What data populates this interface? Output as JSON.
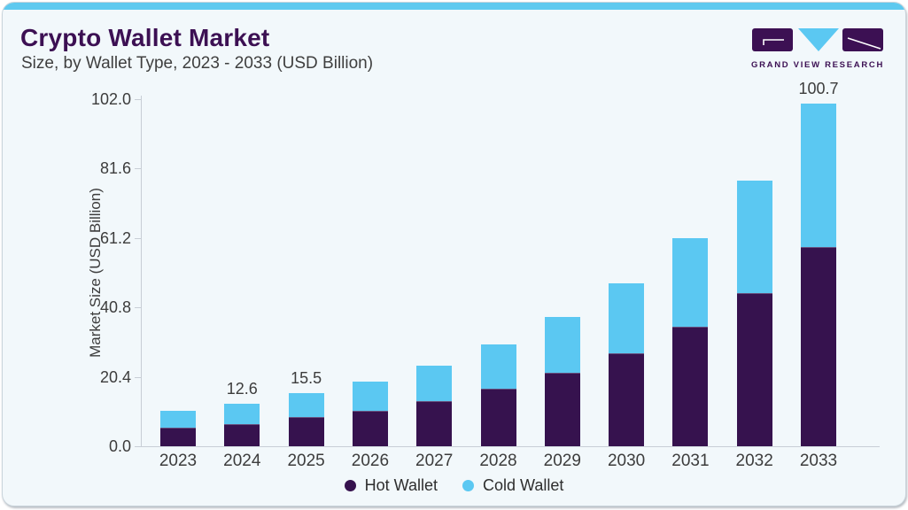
{
  "header": {
    "title": "Crypto Wallet Market",
    "subtitle": "Size, by Wallet Type, 2023 - 2033 (USD Billion)",
    "brand_name": "GRAND VIEW RESEARCH"
  },
  "chart_data": {
    "type": "bar",
    "stacked": true,
    "title": "Crypto Wallet Market Size, by Wallet Type, 2023 - 2033 (USD Billion)",
    "categories": [
      "2023",
      "2024",
      "2025",
      "2026",
      "2027",
      "2028",
      "2029",
      "2030",
      "2031",
      "2032",
      "2033"
    ],
    "series": [
      {
        "name": "Hot Wallet",
        "color": "#36124E",
        "values": [
          5.5,
          6.6,
          8.5,
          10.3,
          13.2,
          17.0,
          21.7,
          27.3,
          35.2,
          45.0,
          58.6
        ]
      },
      {
        "name": "Cold Wallet",
        "color": "#5BC8F2",
        "values": [
          4.8,
          6.0,
          7.0,
          8.8,
          10.6,
          12.9,
          16.2,
          20.7,
          26.0,
          33.1,
          42.1
        ]
      }
    ],
    "totals": [
      10.3,
      12.6,
      15.5,
      19.1,
      23.8,
      29.9,
      37.9,
      48.0,
      61.2,
      78.1,
      100.7
    ],
    "visible_total_labels": [
      "",
      "12.6",
      "15.5",
      "",
      "",
      "",
      "",
      "",
      "",
      "",
      "100.7"
    ],
    "xlabel": "",
    "ylabel": "Market Size (USD Billion)",
    "ylim": [
      0,
      102.0
    ],
    "yticks": [
      0.0,
      20.4,
      40.8,
      61.2,
      81.6,
      102.0
    ],
    "ytick_labels": [
      "0.0",
      "20.4",
      "40.8",
      "61.2",
      "81.6",
      "102.0"
    ],
    "grid": false,
    "legend_position": "bottom"
  },
  "colors": {
    "accent_strip": "#5EC9EF",
    "card_background": "#F2F8FB",
    "card_border": "#C9D4DB",
    "title_purple": "#3C1053",
    "subtitle_gray": "#3F3F3F",
    "axis_line": "#C8CED6",
    "axis_text": "#3C3C3C",
    "hot_wallet": "#36124E",
    "cold_wallet": "#5BC8F2",
    "logo_purple": "#3C1053",
    "logo_blue": "#5BC8F2"
  }
}
